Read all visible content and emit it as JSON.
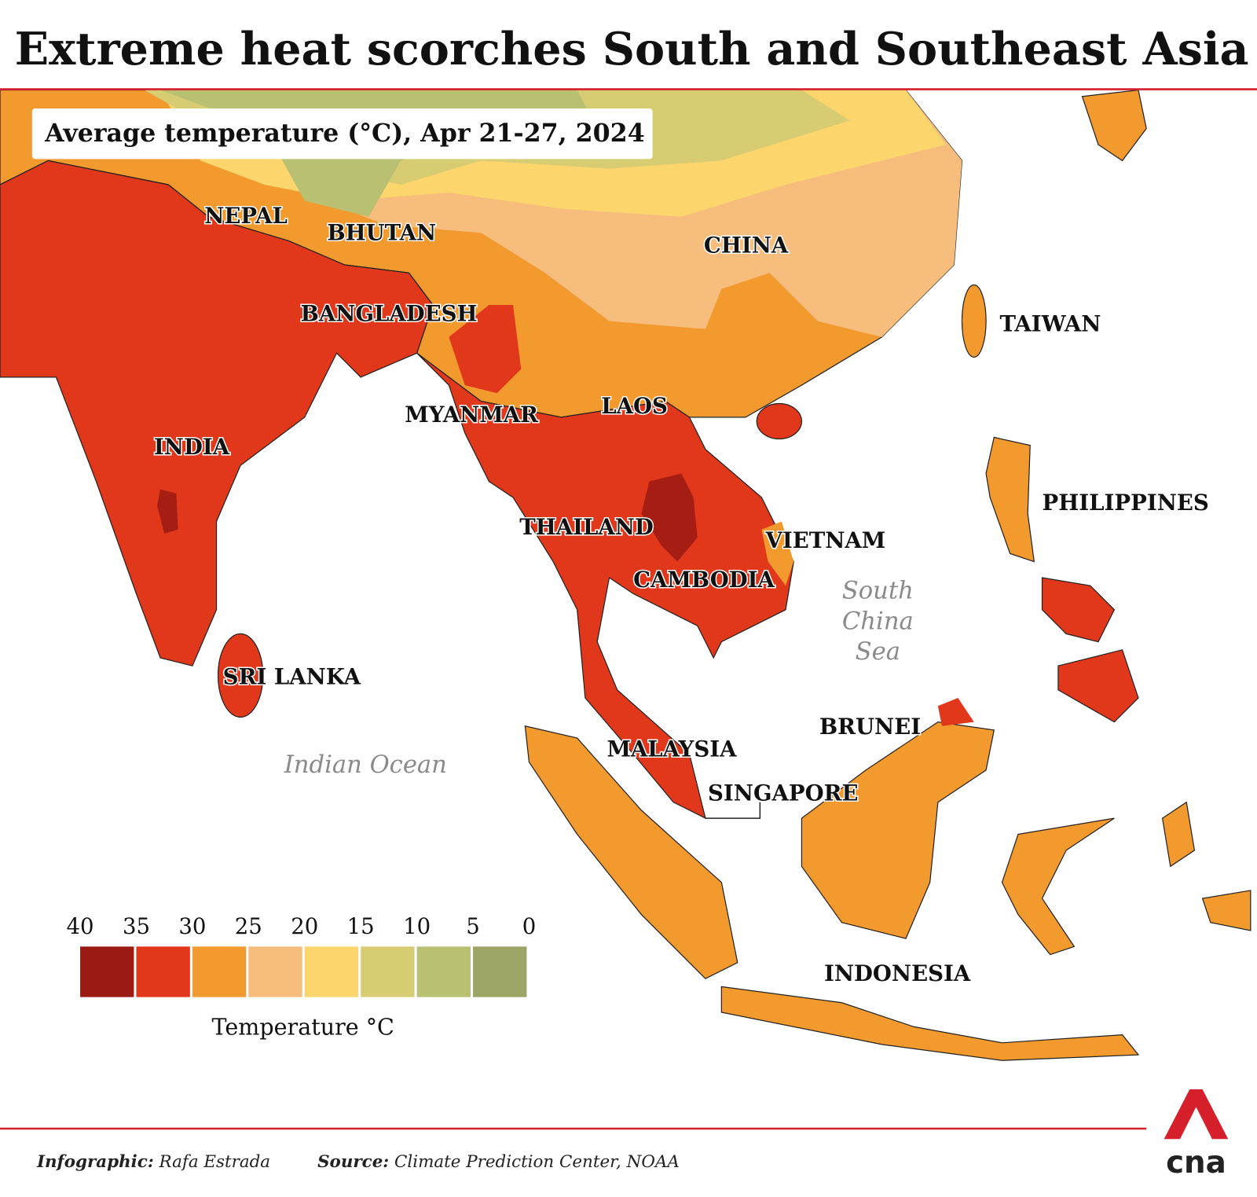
{
  "header": {
    "title": "Extreme heat scorches South and Southeast Asia",
    "subtitle": "Average temperature (°C), Apr 21-27, 2024"
  },
  "map": {
    "countries": [
      "NEPAL",
      "BHUTAN",
      "CHINA",
      "BANGLADESH",
      "TAIWAN",
      "MYANMAR",
      "LAOS",
      "INDIA",
      "PHILIPPINES",
      "THAILAND",
      "VIETNAM",
      "CAMBODIA",
      "SRI LANKA",
      "BRUNEI",
      "MALAYSIA",
      "SINGAPORE",
      "INDONESIA"
    ],
    "seas": [
      "Indian Ocean",
      [
        "South",
        "China",
        "Sea"
      ]
    ]
  },
  "legend": {
    "ticks": [
      40,
      35,
      30,
      25,
      20,
      15,
      10,
      5,
      0
    ],
    "colors": [
      "#9b1a14",
      "#e1371b",
      "#f39a2e",
      "#f6bd7c",
      "#fcd56c",
      "#d8cc72",
      "#b9c072",
      "#9ca566"
    ],
    "title": "Temperature °C"
  },
  "footer": {
    "credit_label": "Infographic:",
    "credit_name": "Rafa Estrada",
    "source_label": "Source:",
    "source_name": "Climate Prediction Center, NOAA",
    "logo": "cna"
  }
}
